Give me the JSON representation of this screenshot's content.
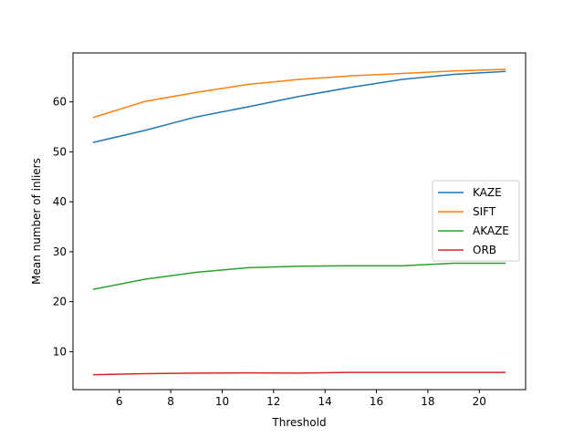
{
  "chart_data": {
    "type": "line",
    "xlabel": "Threshold",
    "ylabel": "Mean number of inliers",
    "xlim": [
      4.2,
      21.8
    ],
    "ylim": [
      2.4,
      69.8
    ],
    "xticks": [
      6,
      8,
      10,
      12,
      14,
      16,
      18,
      20
    ],
    "yticks": [
      10,
      20,
      30,
      40,
      50,
      60
    ],
    "legend_position": "center-right",
    "grid": false,
    "x": [
      5,
      7,
      9,
      11,
      13,
      15,
      17,
      19,
      21
    ],
    "series": [
      {
        "name": "KAZE",
        "color": "#1f77b4",
        "values": [
          51.9,
          54.3,
          57.0,
          59.0,
          61.1,
          62.9,
          64.5,
          65.5,
          66.1
        ]
      },
      {
        "name": "SIFT",
        "color": "#ff7f0e",
        "values": [
          56.9,
          60.1,
          61.9,
          63.5,
          64.5,
          65.2,
          65.7,
          66.2,
          66.5
        ]
      },
      {
        "name": "AKAZE",
        "color": "#2ca02c",
        "values": [
          22.5,
          24.5,
          25.9,
          26.8,
          27.1,
          27.2,
          27.2,
          27.7,
          27.7
        ]
      },
      {
        "name": "ORB",
        "color": "#d62728",
        "values": [
          5.4,
          5.6,
          5.7,
          5.75,
          5.7,
          5.85,
          5.85,
          5.85,
          5.85
        ]
      }
    ]
  }
}
